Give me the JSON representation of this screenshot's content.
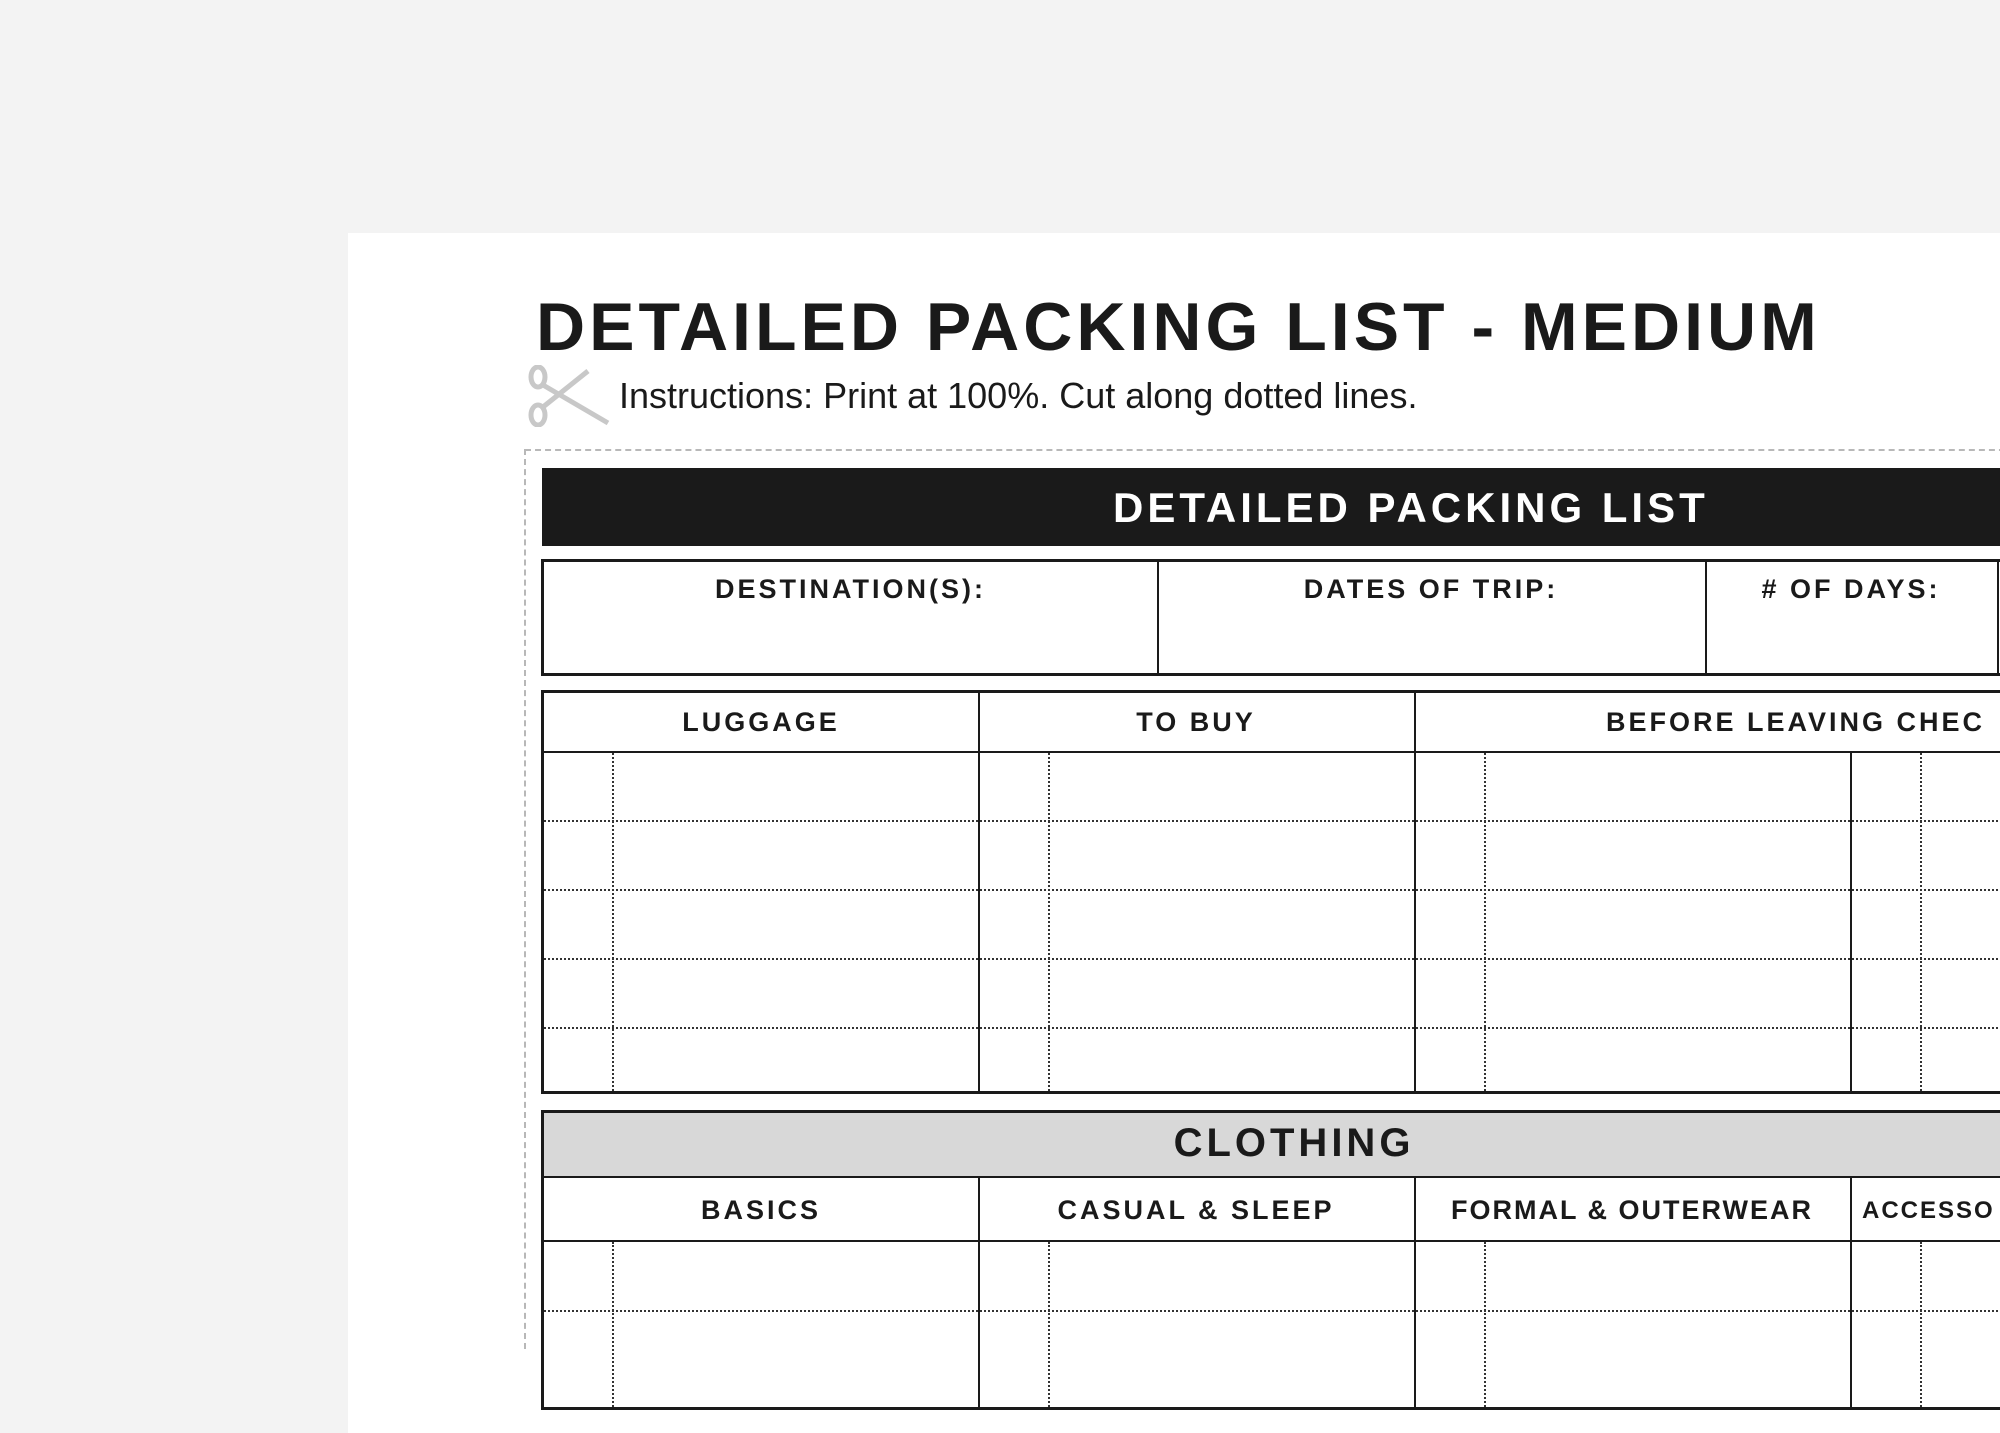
{
  "page": {
    "title": "DETAILED PACKING LIST - MEDIUM",
    "instructions": "Instructions: Print at 100%. Cut along dotted lines.",
    "scissors_icon": "scissors-icon"
  },
  "form": {
    "header": "DETAILED PACKING LIST",
    "info_fields": [
      "DESTINATION(S):",
      "DATES OF TRIP:",
      "# OF DAYS:"
    ],
    "checklists": [
      "LUGGAGE",
      "TO BUY",
      "BEFORE LEAVING CHEC"
    ],
    "clothing": {
      "header": "CLOTHING",
      "columns": [
        "BASICS",
        "CASUAL & SLEEP",
        "FORMAL & OUTERWEAR",
        "ACCESSO"
      ]
    }
  },
  "colors": {
    "background": "#f3f3f3",
    "header_bar": "#1a1a1a",
    "section_gray": "#d8d8d8",
    "cut_line": "#b8b8b8"
  }
}
